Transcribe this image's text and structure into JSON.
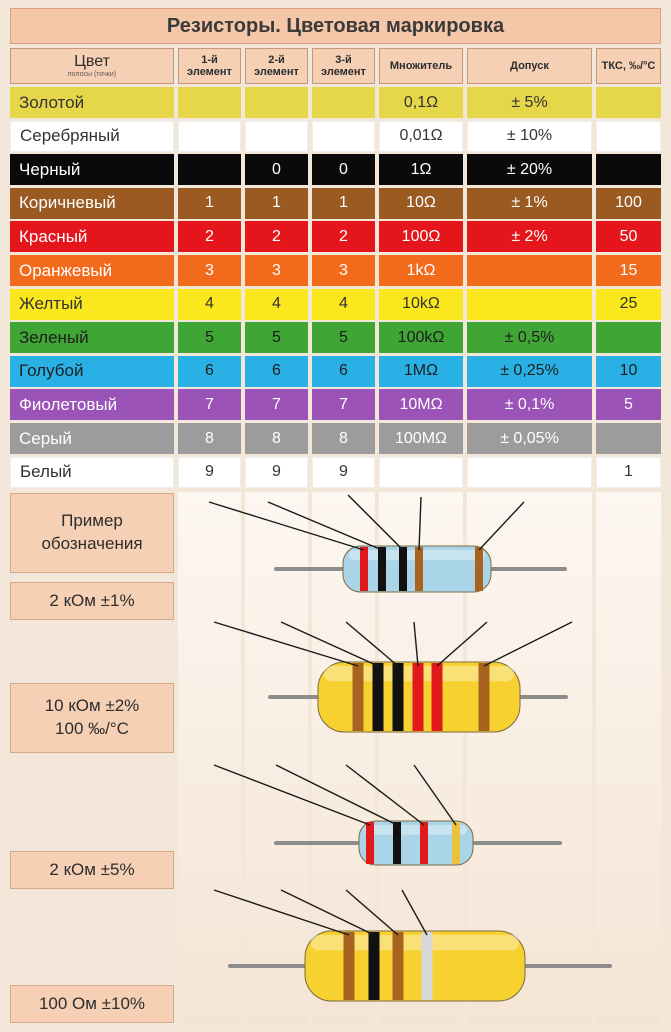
{
  "title": "Резисторы. Цветовая маркировка",
  "headers": [
    {
      "main": "Цвет",
      "sub": "полосы (точки)"
    },
    {
      "main": "1-й элемент",
      "sub": ""
    },
    {
      "main": "2-й элемент",
      "sub": ""
    },
    {
      "main": "3-й элемент",
      "sub": ""
    },
    {
      "main": "Множитель",
      "sub": ""
    },
    {
      "main": "Допуск",
      "sub": ""
    },
    {
      "main": "ТКС, ‰/°С",
      "sub": ""
    }
  ],
  "rows": [
    {
      "name": "Золотой",
      "d1": "",
      "d2": "",
      "d3": "",
      "mult": "0,1Ω",
      "tol": "± 5%",
      "tks": "",
      "bg": "#e6d64a",
      "fg": "#333333"
    },
    {
      "name": "Серебряный",
      "d1": "",
      "d2": "",
      "d3": "",
      "mult": "0,01Ω",
      "tol": "± 10%",
      "tks": "",
      "bg": "#ffffff",
      "fg": "#333333"
    },
    {
      "name": "Черный",
      "d1": "",
      "d2": "0",
      "d3": "0",
      "mult": "1Ω",
      "tol": "± 20%",
      "tks": "",
      "bg": "#0a0a0a",
      "fg": "#ffffff"
    },
    {
      "name": "Коричневый",
      "d1": "1",
      "d2": "1",
      "d3": "1",
      "mult": "10Ω",
      "tol": "± 1%",
      "tks": "100",
      "bg": "#9a5a22",
      "fg": "#ffffff"
    },
    {
      "name": "Красный",
      "d1": "2",
      "d2": "2",
      "d3": "2",
      "mult": "100Ω",
      "tol": "± 2%",
      "tks": "50",
      "bg": "#e4161b",
      "fg": "#ffffff"
    },
    {
      "name": "Оранжевый",
      "d1": "3",
      "d2": "3",
      "d3": "3",
      "mult": "1kΩ",
      "tol": "",
      "tks": "15",
      "bg": "#f26a1b",
      "fg": "#ffffff"
    },
    {
      "name": "Желтый",
      "d1": "4",
      "d2": "4",
      "d3": "4",
      "mult": "10kΩ",
      "tol": "",
      "tks": "25",
      "bg": "#fbe71d",
      "fg": "#333333"
    },
    {
      "name": "Зеленый",
      "d1": "5",
      "d2": "5",
      "d3": "5",
      "mult": "100kΩ",
      "tol": "± 0,5%",
      "tks": "",
      "bg": "#3fa535",
      "fg": "#1e1e1e"
    },
    {
      "name": "Голубой",
      "d1": "6",
      "d2": "6",
      "d3": "6",
      "mult": "1MΩ",
      "tol": "± 0,25%",
      "tks": "10",
      "bg": "#29b1e6",
      "fg": "#1e1e1e"
    },
    {
      "name": "Фиолетовый",
      "d1": "7",
      "d2": "7",
      "d3": "7",
      "mult": "10MΩ",
      "tol": "± 0,1%",
      "tks": "5",
      "bg": "#9b53b8",
      "fg": "#ffffff"
    },
    {
      "name": "Серый",
      "d1": "8",
      "d2": "8",
      "d3": "8",
      "mult": "100MΩ",
      "tol": "± 0,05%",
      "tks": "",
      "bg": "#9c9c9c",
      "fg": "#ffffff"
    },
    {
      "name": "Белый",
      "d1": "9",
      "d2": "9",
      "d3": "9",
      "mult": "",
      "tol": "",
      "tks": "1",
      "bg": "#ffffff",
      "fg": "#333333"
    }
  ],
  "examples": {
    "caption": "Пример обозначения",
    "items": [
      {
        "label": "2 кОм ±1%",
        "bands": [
          "red",
          "black",
          "black",
          "brown",
          "brown"
        ]
      },
      {
        "label": "10 кОм ±2%\n100 ‰/°С",
        "bands": [
          "brown",
          "black",
          "black",
          "red",
          "red",
          "brown"
        ]
      },
      {
        "label": "2 кОм ±5%",
        "bands": [
          "red",
          "black",
          "red",
          "gold"
        ]
      },
      {
        "label": "100 Ом ±10%",
        "bands": [
          "brown",
          "black",
          "brown",
          "silver"
        ]
      }
    ]
  },
  "colors": {
    "header_bg": "#f6d0b5",
    "title_bg": "#f4c7a8",
    "page_bg": "#f3e7d9",
    "resistor_blue": "#aad4e8",
    "resistor_yellow": "#f6d12f"
  }
}
